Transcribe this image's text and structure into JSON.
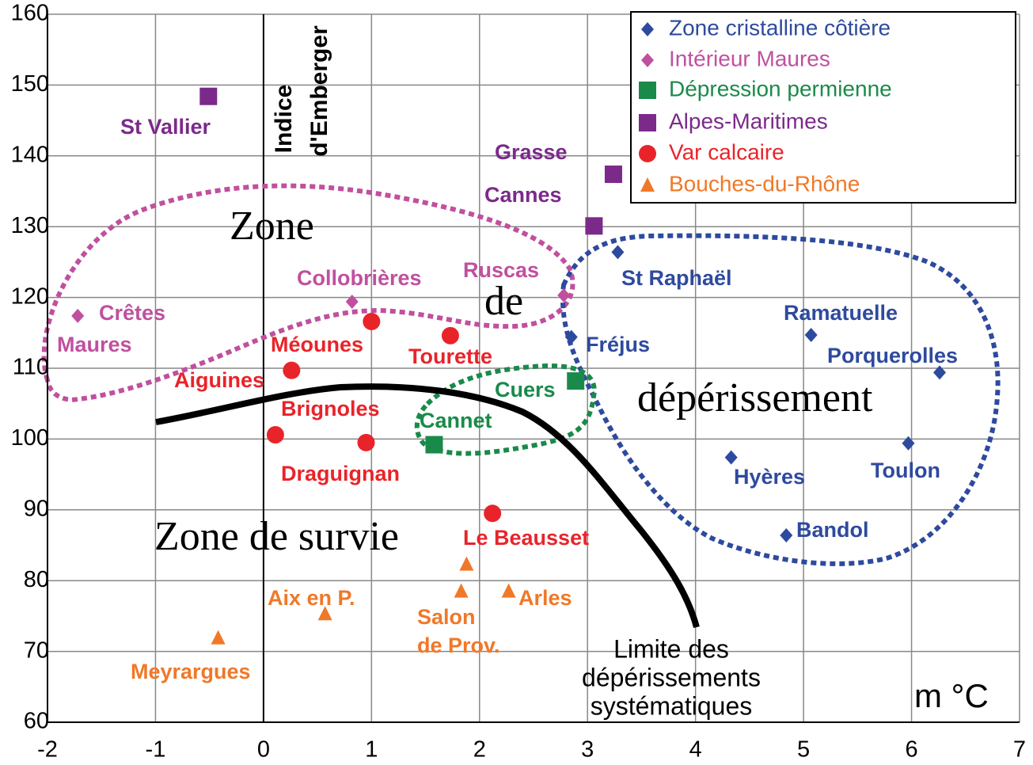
{
  "chart_data": {
    "type": "scatter",
    "xlim": [
      -2,
      7
    ],
    "ylim": [
      60,
      160
    ],
    "xticks": [
      -2,
      -1,
      0,
      1,
      2,
      3,
      4,
      5,
      6,
      7
    ],
    "yticks": [
      60,
      70,
      80,
      90,
      100,
      110,
      120,
      130,
      140,
      150,
      160
    ],
    "grid": true,
    "legend": "upper right",
    "series": [
      {
        "name": "Zone cristalline côtière",
        "color": "#2e4a9e",
        "marker": "diamond",
        "x": [
          3.28,
          2.85,
          5.07,
          6.26,
          5.97,
          4.33,
          4.84
        ],
        "values": [
          126.4,
          114.4,
          114.7,
          109.4,
          99.4,
          97.4,
          86.4
        ],
        "labels": [
          "St Raphaël",
          "Fréjus",
          "Ramatuelle",
          "Porquerolles",
          "Toulon",
          "Hyères",
          "Bandol"
        ]
      },
      {
        "name": "Intérieur Maures",
        "color": "#c0509f",
        "marker": "diamond",
        "x": [
          -1.72,
          0.82,
          2.78
        ],
        "values": [
          117.4,
          119.4,
          120.3
        ],
        "labels": [
          [
            "Crêtes",
            "Maures"
          ],
          "Collobrières",
          "Ruscas"
        ]
      },
      {
        "name": "Dépression permienne",
        "color": "#1a8a4a",
        "marker": "square",
        "x": [
          2.89,
          1.58
        ],
        "values": [
          108.2,
          99.2
        ],
        "labels": [
          "Cuers",
          "Cannet"
        ]
      },
      {
        "name": "Alpes-Maritimes",
        "color": "#7b2a8a",
        "marker": "square",
        "x": [
          -0.51,
          3.24,
          3.06
        ],
        "values": [
          148.4,
          137.4,
          130.1
        ],
        "labels": [
          "St Vallier",
          "Grasse",
          "Cannes"
        ]
      },
      {
        "name": "Var calcaire",
        "color": "#e8242a",
        "marker": "circle",
        "x": [
          1.0,
          1.73,
          0.26,
          0.11,
          0.95,
          2.12
        ],
        "values": [
          116.6,
          114.6,
          109.7,
          100.6,
          99.5,
          89.5
        ],
        "labels": [
          "Méounes",
          "Tourette",
          "Aiguines",
          "Brignoles",
          "Draguignan",
          "Le Beausset"
        ]
      },
      {
        "name": "Bouches-du-Rhône",
        "color": "#f07828",
        "marker": "triangle",
        "x": [
          -0.42,
          0.57,
          1.83,
          2.27,
          1.88
        ],
        "values": [
          71.9,
          75.3,
          78.5,
          78.5,
          82.3
        ],
        "labels": [
          "Meyrargues",
          "Aix en P.",
          [
            "Salon",
            "de Prov."
          ],
          "Arles",
          null
        ]
      }
    ],
    "annotations": [
      "Zone",
      "de",
      "dépérissement",
      "Zone de survie",
      [
        "Indice",
        "d'Emberger"
      ],
      "m °C",
      [
        "Limite des",
        "dépérissements",
        "systématiques"
      ]
    ]
  }
}
